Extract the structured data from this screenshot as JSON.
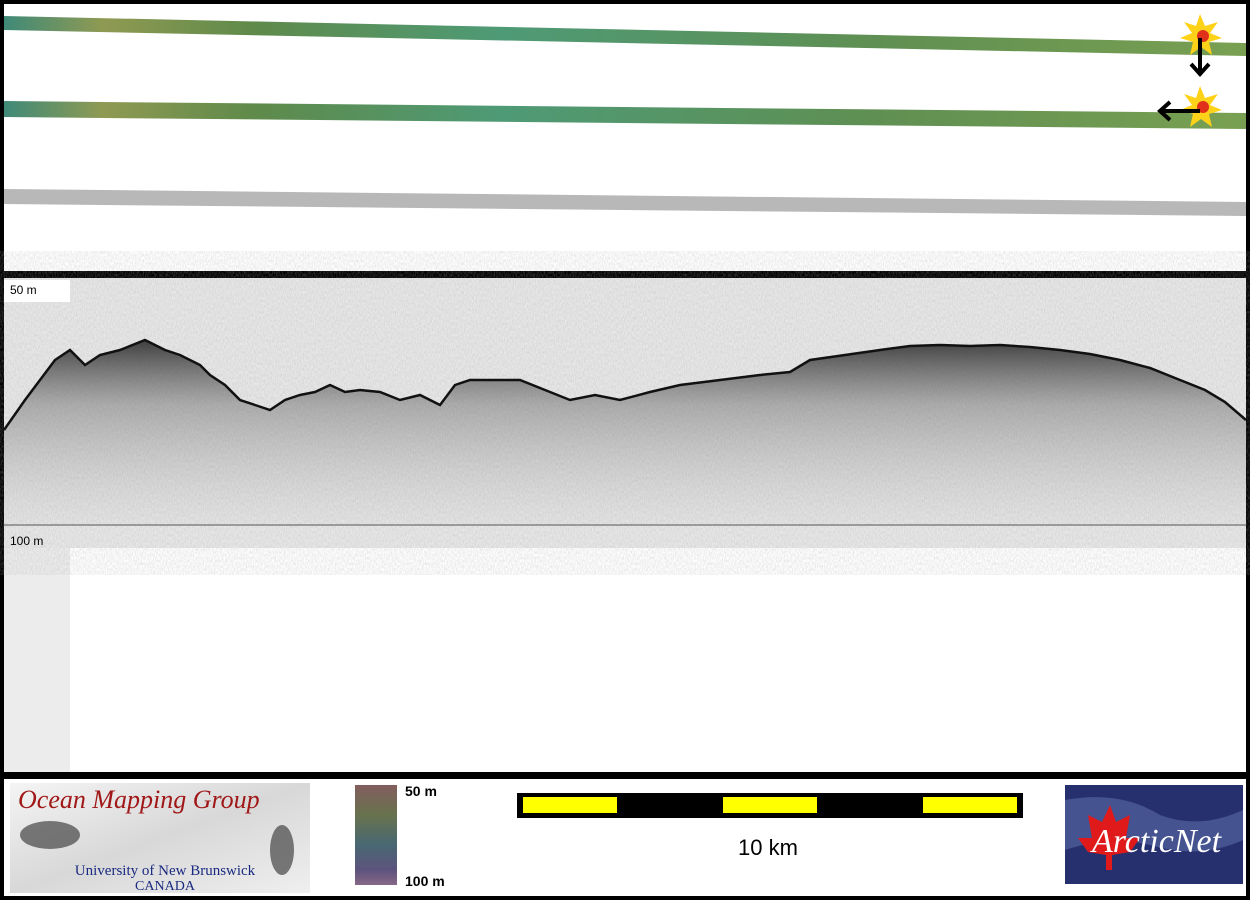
{
  "profile": {
    "top_depth_label": "50 m",
    "bottom_depth_label": "100 m"
  },
  "logo": {
    "title": "Ocean Mapping Group",
    "university": "University of New Brunswick",
    "country": "CANADA"
  },
  "colorbar": {
    "top_label": "50 m",
    "bottom_label": "100 m"
  },
  "scale_bar": {
    "label": "10 km"
  },
  "partner_logo": {
    "name": "ArcticNet"
  }
}
